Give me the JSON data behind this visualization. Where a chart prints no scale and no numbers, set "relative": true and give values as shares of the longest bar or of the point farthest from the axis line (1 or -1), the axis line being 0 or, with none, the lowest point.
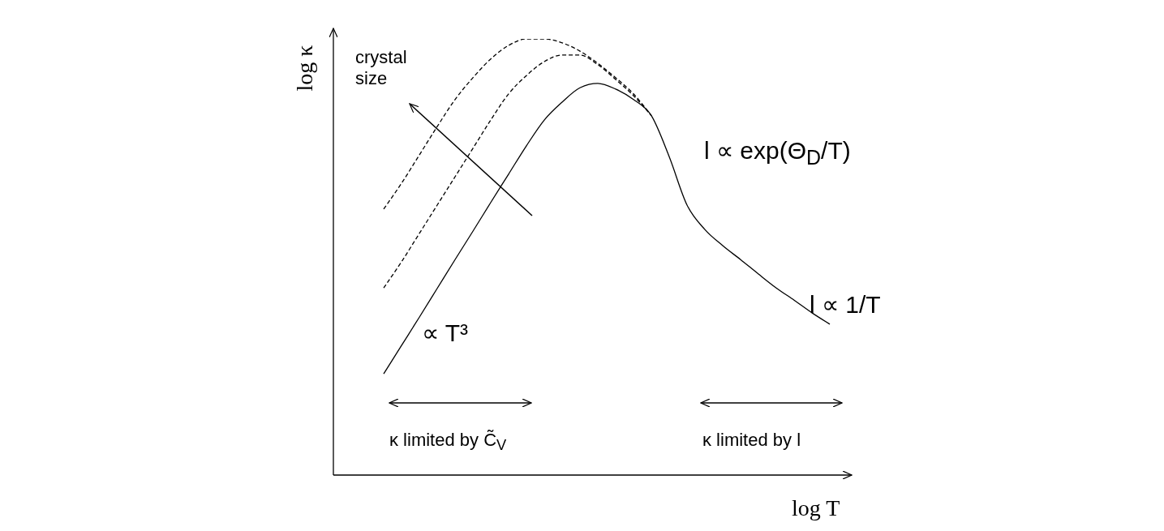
{
  "chart_data": {
    "type": "line",
    "relative": true,
    "xlabel": "log T",
    "ylabel": "log κ",
    "categories": [
      null,
      null,
      null,
      null,
      null,
      null,
      null,
      null,
      null,
      null,
      null,
      null,
      null,
      null,
      null,
      null,
      null,
      null,
      null,
      null,
      null,
      null,
      null,
      null,
      null,
      null
    ],
    "series": [
      {
        "color": "#000000",
        "line_style": "solid",
        "values": [
          0.232,
          0.297,
          0.362,
          0.428,
          0.494,
          0.559,
          0.625,
          0.69,
          0.755,
          0.814,
          0.855,
          0.888,
          0.898,
          0.885,
          0.861,
          0.824,
          0.73,
          0.619,
          0.563,
          0.526,
          0.494,
          0.461,
          0.429,
          0.401,
          0.372,
          0.346
        ]
      },
      {
        "color": "#000000",
        "line_style": "dashed",
        "values": [
          0.61,
          0.669,
          0.734,
          0.799,
          0.861,
          0.911,
          0.954,
          0.985,
          1.0,
          1.0,
          0.991,
          0.972,
          0.944,
          0.911,
          0.874,
          0.824,
          null,
          null,
          null,
          null,
          null,
          null,
          null,
          null,
          null,
          null
        ]
      },
      {
        "color": "#000000",
        "line_style": "dashed",
        "values": [
          0.429,
          0.489,
          0.554,
          0.619,
          0.684,
          0.749,
          0.814,
          0.874,
          0.916,
          0.948,
          0.963,
          0.963,
          0.941,
          0.907,
          0.87,
          0.824,
          null,
          null,
          null,
          null,
          null,
          null,
          null,
          null,
          null,
          null
        ]
      }
    ],
    "annotations": [
      "crystal size",
      "l ∝ exp(Θ$_{D}$/T)",
      "l ∝ 1/T",
      "∝ T³",
      "κ limited by C̃$_{V}$",
      "κ limited by l"
    ],
    "grid": false,
    "legend": false,
    "marker": "none"
  }
}
